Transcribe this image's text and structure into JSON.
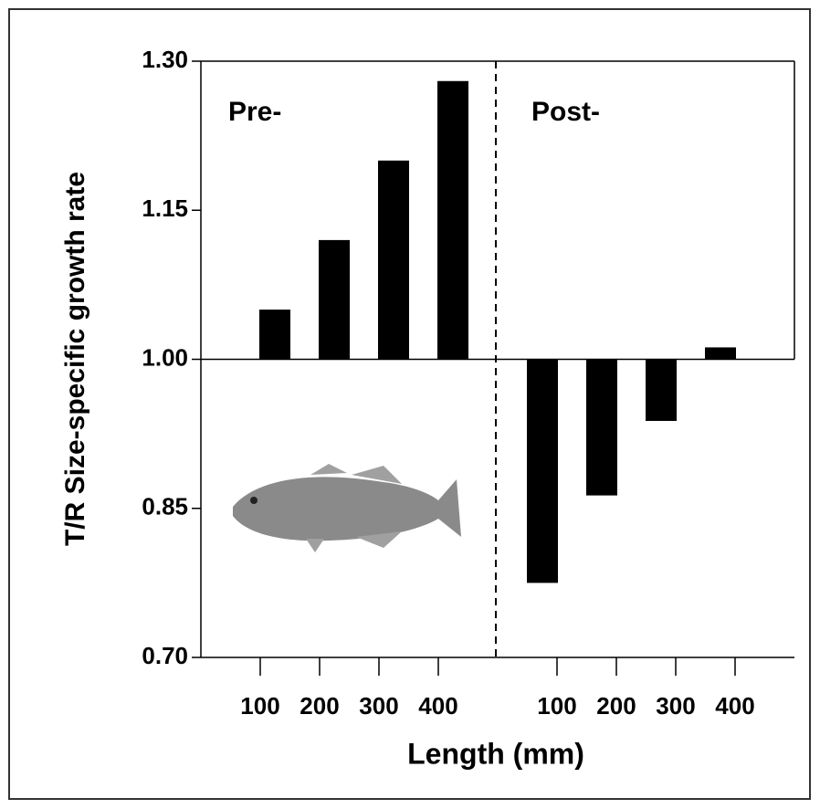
{
  "chart_data": {
    "type": "bar",
    "x_label": "Length (mm)",
    "y_label": "T/R Size-specific growth rate",
    "baseline": 1.0,
    "ylim": [
      0.7,
      1.3
    ],
    "yticks": [
      {
        "value": 0.7,
        "label": "0.70"
      },
      {
        "value": 0.85,
        "label": "0.85"
      },
      {
        "value": 1.0,
        "label": "1.00"
      },
      {
        "value": 1.15,
        "label": "1.15"
      },
      {
        "value": 1.3,
        "label": "1.30"
      }
    ],
    "color": "#000000",
    "groups": [
      {
        "name": "Pre-",
        "categories": [
          "100",
          "200",
          "300",
          "400"
        ],
        "values": [
          1.05,
          1.12,
          1.2,
          1.28
        ]
      },
      {
        "name": "Post-",
        "categories": [
          "100",
          "200",
          "300",
          "400"
        ],
        "values": [
          0.775,
          0.863,
          0.938,
          1.012
        ]
      }
    ]
  }
}
